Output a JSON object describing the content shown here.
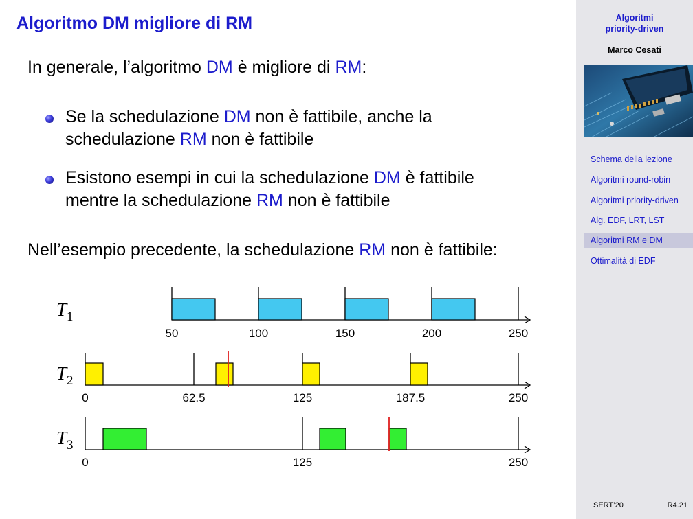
{
  "slide": {
    "title": "Algoritmo DM migliore di RM",
    "intro": {
      "before": "In generale, l’algoritmo ",
      "h1": "DM",
      "mid": " è migliore di ",
      "h2": "RM",
      "after": ":"
    },
    "bullets": [
      {
        "l1_before": "Se la schedulazione ",
        "l1_h": "DM",
        "l1_after": " non è fattibile, anche la",
        "l2_before": "schedulazione ",
        "l2_h": "RM",
        "l2_after": " non è fattibile"
      },
      {
        "l1_before": "Esistono esempi in cui la schedulazione ",
        "l1_h": "DM",
        "l1_after": " è fattibile",
        "l2_before": "mentre la schedulazione ",
        "l2_h": "RM",
        "l2_after": " non è fattibile"
      }
    ],
    "example": {
      "before": "Nell’esempio precedente, la schedulazione ",
      "h": "RM",
      "after": " non è fattibile:"
    }
  },
  "diagram": {
    "colors": {
      "t1": "#44c8f0",
      "t2": "#fff000",
      "t3": "#33ee33",
      "miss": "#e02020"
    },
    "rows": [
      {
        "name": "T",
        "sub": "1",
        "ticks": [
          "50",
          "100",
          "150",
          "200",
          "250"
        ]
      },
      {
        "name": "T",
        "sub": "2",
        "ticks": [
          "0",
          "62.5",
          "125",
          "187.5",
          "250"
        ]
      },
      {
        "name": "T",
        "sub": "3",
        "ticks": [
          "0",
          "125",
          "250"
        ]
      }
    ]
  },
  "sidebar": {
    "title_line1": "Algoritmi",
    "title_line2": "priority-driven",
    "author": "Marco Cesati",
    "nav": [
      "Schema della lezione",
      "Algoritmi round-robin",
      "Algoritmi priority-driven",
      "Alg. EDF, LRT, LST",
      "Algoritmi RM e DM",
      "Ottimalità di EDF"
    ],
    "active_index": 4,
    "footer_left": "SERT’20",
    "footer_right": "R4.21"
  }
}
